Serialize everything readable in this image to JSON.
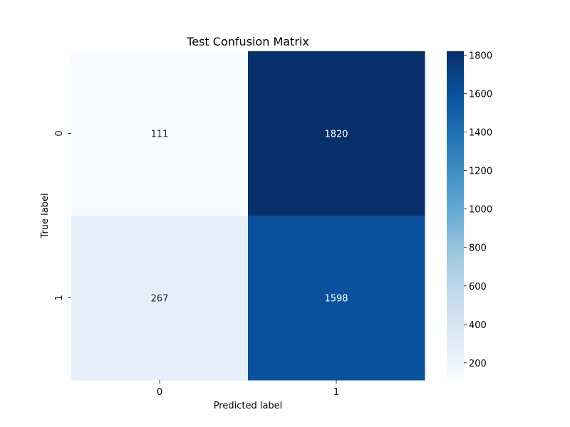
{
  "chart_data": {
    "type": "heatmap",
    "title": "Test Confusion Matrix",
    "xlabel": "Predicted label",
    "ylabel": "True label",
    "x_categories": [
      "0",
      "1"
    ],
    "y_categories": [
      "0",
      "1"
    ],
    "values": [
      [
        111,
        1820
      ],
      [
        267,
        1598
      ]
    ],
    "colormap": "Blues",
    "colorbar": {
      "min": 111,
      "max": 1820,
      "ticks": [
        200,
        400,
        600,
        800,
        1000,
        1200,
        1400,
        1600,
        1800
      ],
      "tick_labels": [
        "200",
        "400",
        "600",
        "800",
        "1000",
        "1200",
        "1400",
        "1600",
        "1800"
      ]
    },
    "grid": false
  }
}
